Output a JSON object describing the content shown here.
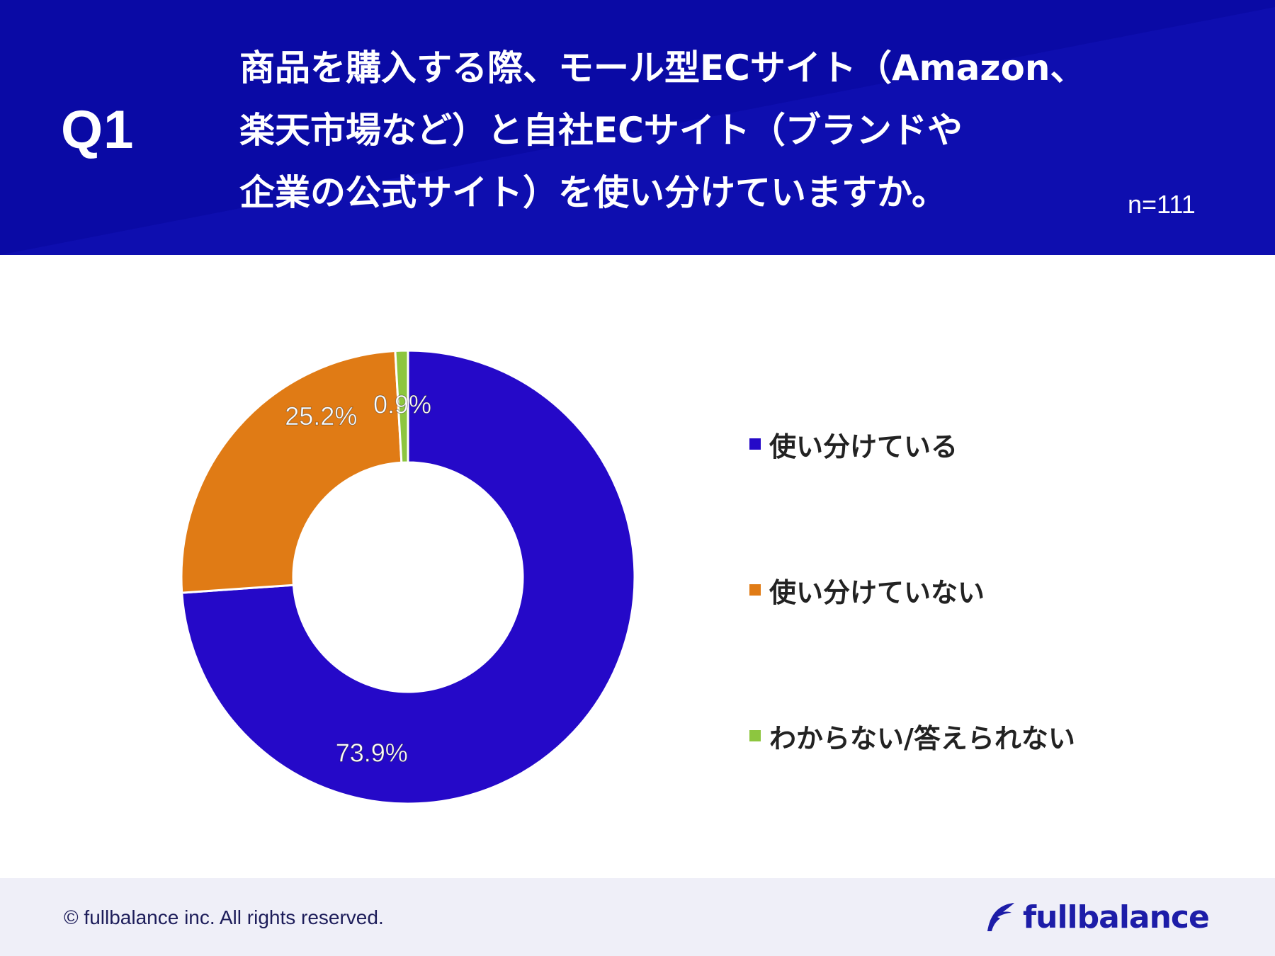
{
  "header": {
    "question_number": "Q1",
    "question_lines": [
      "商品を購入する際、モール型ECサイト（Amazon、",
      "楽天市場など）と自社ECサイト（ブランドや",
      "企業の公式サイト）を使い分けていますか。"
    ],
    "sample_size": "n=111"
  },
  "chart_data": {
    "type": "pie",
    "variant": "donut",
    "categories": [
      "使い分けている",
      "使い分けていない",
      "わからない/答えられない"
    ],
    "values": [
      73.9,
      25.2,
      0.9
    ],
    "labels": [
      "73.9%",
      "25.2%",
      "0.9%"
    ],
    "colors": [
      "#2509c8",
      "#e07b15",
      "#8dc63f"
    ],
    "legend_position": "right"
  },
  "footer": {
    "copyright": "© fullbalance inc. All rights reserved.",
    "logo_text": "fullbalance",
    "logo_icon": "feather-icon"
  },
  "colors": {
    "header_bg": "#0a0aa5",
    "footer_bg": "#efeff8",
    "logo": "#1d1da8"
  }
}
